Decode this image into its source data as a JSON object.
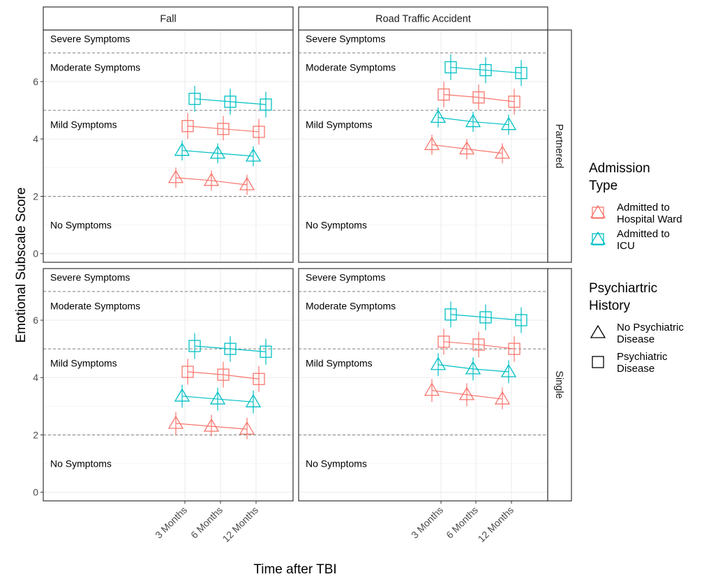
{
  "chart_data": {
    "type": "line",
    "xlabel": "Time after TBI",
    "ylabel": "Emotional Subscale Score",
    "ylim": [
      -0.3,
      7.8
    ],
    "yticks": [
      0,
      2,
      4,
      6
    ],
    "x_categories": [
      "3 Months",
      "6 Months",
      "12 Months"
    ],
    "facet_columns": [
      "Fall",
      "Road Traffic Accident"
    ],
    "facet_rows": [
      "Partnered",
      "Single"
    ],
    "thresholds": [
      2,
      5,
      7
    ],
    "zones": [
      {
        "label": "Severe Symptoms",
        "y": 7.5
      },
      {
        "label": "Moderate Symptoms",
        "y": 6.5
      },
      {
        "label": "Mild Symptoms",
        "y": 4.5
      },
      {
        "label": "No Symptoms",
        "y": 1.0
      }
    ],
    "grid": true,
    "legends": [
      {
        "title_lines": [
          "Admission",
          "Type"
        ],
        "items": [
          {
            "key": "ward",
            "label_lines": [
              "Admitted to",
              "Hospital Ward"
            ],
            "color": "#F8766D"
          },
          {
            "key": "icu",
            "label_lines": [
              "Admitted to",
              "ICU"
            ],
            "color": "#00BFC4"
          }
        ]
      },
      {
        "title_lines": [
          "Psychiartric",
          "History"
        ],
        "items": [
          {
            "key": "none",
            "label_lines": [
              "No Psychiatric",
              "Disease"
            ],
            "shape": "triangle"
          },
          {
            "key": "psych",
            "label_lines": [
              "Psychiatric",
              "Disease"
            ],
            "shape": "square"
          }
        ]
      }
    ],
    "panels": [
      {
        "column": "Fall",
        "row": "Partnered",
        "series": [
          {
            "admission": "ward",
            "history": "none",
            "values": [
              2.65,
              2.55,
              2.4
            ],
            "lower": [
              2.3,
              2.2,
              2.05
            ],
            "upper": [
              3.0,
              2.9,
              2.75
            ]
          },
          {
            "admission": "icu",
            "history": "none",
            "values": [
              3.6,
              3.5,
              3.4
            ],
            "lower": [
              3.25,
              3.15,
              3.05
            ],
            "upper": [
              3.95,
              3.85,
              3.75
            ]
          },
          {
            "admission": "ward",
            "history": "psych",
            "values": [
              4.45,
              4.35,
              4.25
            ],
            "lower": [
              4.0,
              3.95,
              3.8
            ],
            "upper": [
              4.9,
              4.8,
              4.7
            ]
          },
          {
            "admission": "icu",
            "history": "psych",
            "values": [
              5.4,
              5.3,
              5.2
            ],
            "lower": [
              4.95,
              4.85,
              4.75
            ],
            "upper": [
              5.85,
              5.75,
              5.65
            ]
          }
        ]
      },
      {
        "column": "Road Traffic Accident",
        "row": "Partnered",
        "series": [
          {
            "admission": "ward",
            "history": "none",
            "values": [
              3.8,
              3.65,
              3.5
            ],
            "lower": [
              3.45,
              3.3,
              3.15
            ],
            "upper": [
              4.15,
              4.0,
              3.85
            ]
          },
          {
            "admission": "icu",
            "history": "none",
            "values": [
              4.75,
              4.6,
              4.5
            ],
            "lower": [
              4.4,
              4.25,
              4.15
            ],
            "upper": [
              5.1,
              4.95,
              4.85
            ]
          },
          {
            "admission": "ward",
            "history": "psych",
            "values": [
              5.55,
              5.45,
              5.3
            ],
            "lower": [
              5.1,
              5.0,
              4.85
            ],
            "upper": [
              6.0,
              5.9,
              5.75
            ]
          },
          {
            "admission": "icu",
            "history": "psych",
            "values": [
              6.5,
              6.4,
              6.3
            ],
            "lower": [
              6.05,
              5.95,
              5.85
            ],
            "upper": [
              6.95,
              6.85,
              6.75
            ]
          }
        ]
      },
      {
        "column": "Fall",
        "row": "Single",
        "series": [
          {
            "admission": "ward",
            "history": "none",
            "values": [
              2.4,
              2.3,
              2.2
            ],
            "lower": [
              2.0,
              1.95,
              1.85
            ],
            "upper": [
              2.8,
              2.7,
              2.6
            ]
          },
          {
            "admission": "icu",
            "history": "none",
            "values": [
              3.35,
              3.25,
              3.15
            ],
            "lower": [
              2.95,
              2.85,
              2.75
            ],
            "upper": [
              3.75,
              3.65,
              3.55
            ]
          },
          {
            "admission": "ward",
            "history": "psych",
            "values": [
              4.2,
              4.1,
              3.95
            ],
            "lower": [
              3.75,
              3.65,
              3.5
            ],
            "upper": [
              4.65,
              4.55,
              4.4
            ]
          },
          {
            "admission": "icu",
            "history": "psych",
            "values": [
              5.1,
              5.0,
              4.9
            ],
            "lower": [
              4.65,
              4.55,
              4.45
            ],
            "upper": [
              5.55,
              5.45,
              5.35
            ]
          }
        ]
      },
      {
        "column": "Road Traffic Accident",
        "row": "Single",
        "series": [
          {
            "admission": "ward",
            "history": "none",
            "values": [
              3.55,
              3.4,
              3.25
            ],
            "lower": [
              3.15,
              3.0,
              2.9
            ],
            "upper": [
              3.95,
              3.8,
              3.65
            ]
          },
          {
            "admission": "icu",
            "history": "none",
            "values": [
              4.45,
              4.3,
              4.2
            ],
            "lower": [
              4.05,
              3.9,
              3.8
            ],
            "upper": [
              4.85,
              4.7,
              4.6
            ]
          },
          {
            "admission": "ward",
            "history": "psych",
            "values": [
              5.25,
              5.15,
              5.0
            ],
            "lower": [
              4.8,
              4.7,
              4.55
            ],
            "upper": [
              5.7,
              5.6,
              5.45
            ]
          },
          {
            "admission": "icu",
            "history": "psych",
            "values": [
              6.2,
              6.1,
              6.0
            ],
            "lower": [
              5.75,
              5.65,
              5.55
            ],
            "upper": [
              6.65,
              6.55,
              6.45
            ]
          }
        ]
      }
    ]
  }
}
